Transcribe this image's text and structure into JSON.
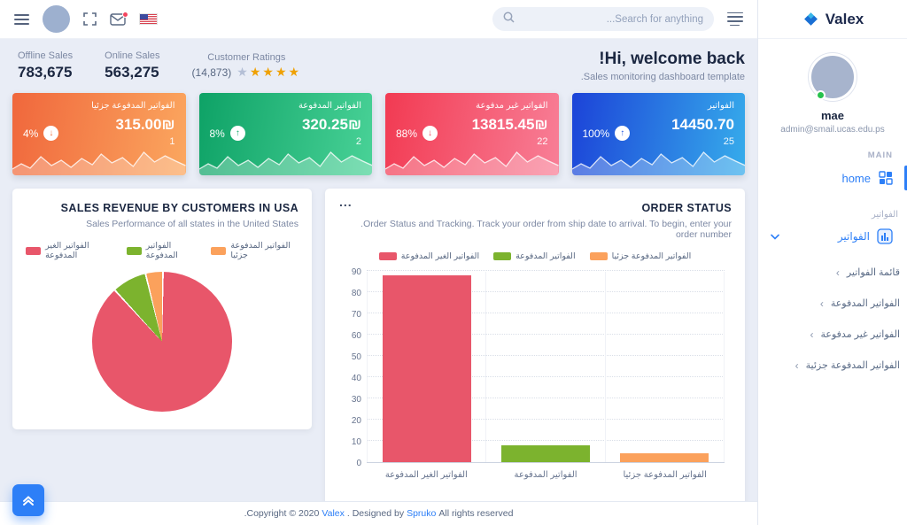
{
  "brand": {
    "name": "Valex"
  },
  "topbar": {
    "search_placeholder": "...Search for anything"
  },
  "stats": {
    "offline": {
      "label": "Offline Sales",
      "value": "783,675"
    },
    "online": {
      "label": "Online Sales",
      "value": "563,275"
    },
    "ratings": {
      "label": "Customer Ratings",
      "count": "(14,873)",
      "stars": [
        "gray",
        "gold",
        "gold",
        "gold",
        "gold"
      ]
    }
  },
  "welcome": {
    "title": "!Hi, welcome back",
    "subtitle": ".Sales monitoring dashboard template"
  },
  "cards": [
    {
      "label": "الفواتير المدفوعة جزئيا",
      "value": "315.00₪",
      "count": "1",
      "percent": "4%",
      "arrow": "down",
      "accent": "#f0743f",
      "gradient": "linear-gradient(100deg,#f0673c,#fba75f)"
    },
    {
      "label": "الفواتير المدفوعة",
      "value": "320.25₪",
      "count": "2",
      "percent": "8%",
      "arrow": "up",
      "accent": "#14a76c",
      "gradient": "linear-gradient(100deg,#0ea266,#49d297)"
    },
    {
      "label": "الفواتير غير مدفوعة",
      "value": "13815.45₪",
      "count": "22",
      "percent": "88%",
      "arrow": "down",
      "accent": "#f2455c",
      "gradient": "linear-gradient(100deg,#f23a52,#f87f97)"
    },
    {
      "label": "الفواتير",
      "value": "14450.70",
      "count": "25",
      "percent": "100%",
      "arrow": "up",
      "accent": "#2156dd",
      "gradient": "linear-gradient(100deg,#1c43d8,#36aceb)"
    }
  ],
  "pie_card": {
    "title": "SALES REVENUE BY CUSTOMERS IN USA",
    "subtitle": "Sales Performance of all states in the United States"
  },
  "bar_card": {
    "menu": "...",
    "title": "ORDER STATUS",
    "subtitle": ".Order Status and Tracking. Track your order from ship date to arrival. To begin, enter your order number"
  },
  "chart_data": [
    {
      "type": "pie",
      "title": "SALES REVENUE BY CUSTOMERS IN USA",
      "labels": [
        "الفواتير الغير المدفوعة",
        "الفواتير المدفوعة",
        "الفواتير المدفوعة جزئيا"
      ],
      "values": [
        88,
        8,
        4
      ],
      "colors": [
        "#e8566a",
        "#7cb32e",
        "#fba15c"
      ],
      "legend_position": "top"
    },
    {
      "type": "bar",
      "title": "ORDER STATUS",
      "categories": [
        "الفواتير الغير المدفوعة",
        "الفواتير المدفوعة",
        "الفواتير المدفوعة جزئيا"
      ],
      "values": [
        88,
        8,
        4
      ],
      "colors": [
        "#e8566a",
        "#7cb32e",
        "#fba15c"
      ],
      "ylim": [
        0,
        90
      ],
      "ytick_step": 10,
      "grid": true,
      "legend_position": "top"
    }
  ],
  "sidebar": {
    "user": {
      "name": "mae",
      "email": "admin@smail.ucas.edu.ps"
    },
    "section_main": "MAIN",
    "home_label": "home",
    "section_invoices": "الفواتير",
    "parent_item": "الفواتير",
    "items": [
      {
        "label": "قائمة الفواتير"
      },
      {
        "label": "الفواتير المدفوعة"
      },
      {
        "label": "الفواتير غير مدفوعة"
      },
      {
        "label": "الفواتير المدفوعة جزئية"
      }
    ]
  },
  "footer": {
    "pre": ".Copyright © 2020",
    "brand": "Valex",
    "mid": ". Designed by",
    "designer": "Spruko",
    "post": "All rights reserved"
  }
}
